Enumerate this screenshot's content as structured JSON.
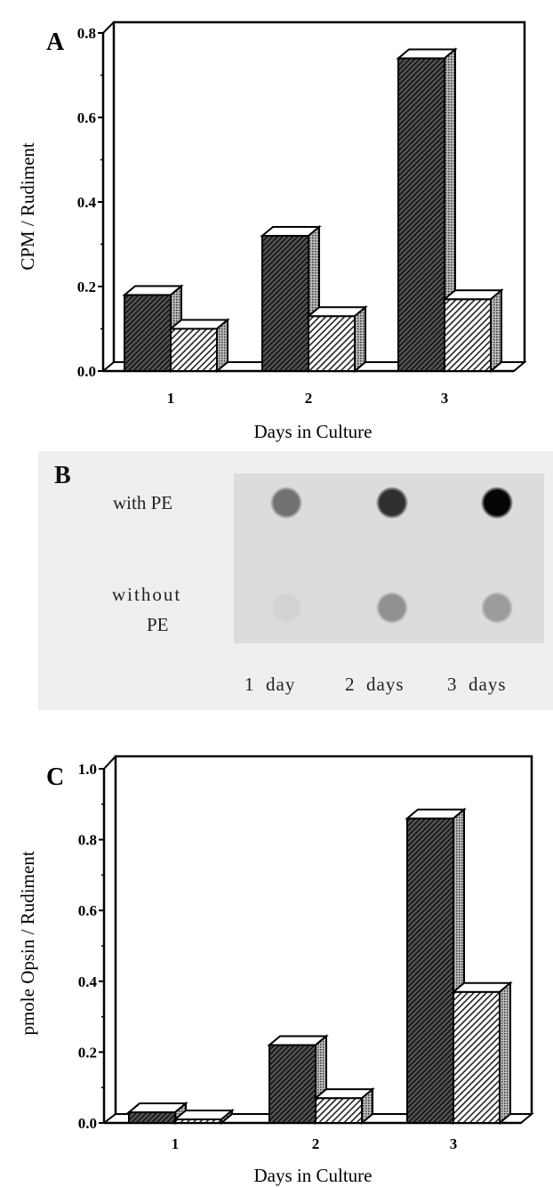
{
  "panel_b": {
    "label": "B",
    "rows": [
      {
        "label_line1": "with PE",
        "label_line2": "",
        "intensities": [
          0.5,
          0.8,
          1.0
        ]
      },
      {
        "label_line1": "without",
        "label_line2": "PE",
        "intensities": [
          0.04,
          0.35,
          0.3
        ]
      }
    ],
    "columns": [
      "1  day",
      "2  days",
      "3  days"
    ]
  },
  "chart_data": [
    {
      "panel_label": "A",
      "type": "bar",
      "style": "3d-hatched",
      "categories": [
        "1",
        "2",
        "3"
      ],
      "series": [
        {
          "values": [
            0.18,
            0.32,
            0.74
          ],
          "fill": "dark-hatch"
        },
        {
          "values": [
            0.1,
            0.13,
            0.17
          ],
          "fill": "light-hatch"
        }
      ],
      "xlabel": "Days in Culture",
      "ylabel": "CPM / Rudiment",
      "ylim": [
        0,
        0.8
      ],
      "yticks": [
        "0.0",
        "0.2",
        "0.4",
        "0.6",
        "0.8"
      ],
      "grid": false
    },
    {
      "panel_label": "C",
      "type": "bar",
      "style": "3d-hatched",
      "categories": [
        "1",
        "2",
        "3"
      ],
      "series": [
        {
          "values": [
            0.03,
            0.22,
            0.86
          ],
          "fill": "dark-hatch"
        },
        {
          "values": [
            0.01,
            0.07,
            0.37
          ],
          "fill": "light-hatch"
        }
      ],
      "xlabel": "Days in Culture",
      "ylabel": "pmole Opsin / Rudiment",
      "ylim": [
        0,
        1.0
      ],
      "yticks": [
        "0.0",
        "0.2",
        "0.4",
        "0.6",
        "0.8",
        "1.0"
      ],
      "grid": false
    }
  ]
}
